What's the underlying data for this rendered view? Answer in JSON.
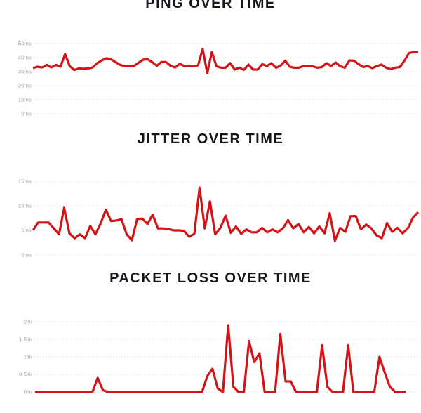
{
  "colors": {
    "line_red": "#d41317",
    "grid_dots": "#cfcfcf",
    "tick_text": "#969da5",
    "title_text": "#15171c",
    "background": "#ffffff"
  },
  "chart_data": [
    {
      "id": "ping",
      "type": "line",
      "title": "PING OVER TIME",
      "y_unit": "ms",
      "ylim": [
        0,
        50
      ],
      "yticks": [
        {
          "label": "50ms",
          "value": 50
        },
        {
          "label": "40ms",
          "value": 40
        },
        {
          "label": "30ms",
          "value": 30
        },
        {
          "label": "20ms",
          "value": 20
        },
        {
          "label": "10ms",
          "value": 10
        },
        {
          "label": "0ms",
          "value": 0
        }
      ],
      "grid": "dotted-horizontal",
      "legend": "none",
      "x_tick_labels": "none",
      "line_color": "#d41317",
      "values": [
        32.5,
        33.5,
        33,
        34.8,
        33,
        34.8,
        33.5,
        42.5,
        34,
        31.2,
        32.3,
        32,
        32.3,
        33,
        36,
        38,
        39.5,
        38.8,
        36.8,
        34.8,
        33.8,
        33.8,
        34,
        36.3,
        38.5,
        38.8,
        36.8,
        34.2,
        36.8,
        36.8,
        34.2,
        33,
        35.5,
        34,
        34.2,
        33.8,
        34.5,
        46.2,
        29,
        44,
        33.8,
        32.8,
        32.8,
        36,
        31.5,
        32.8,
        31.3,
        35,
        31.5,
        31.5,
        35.3,
        34,
        36,
        32.8,
        34.3,
        37.8,
        33.5,
        32.8,
        32.8,
        34,
        34,
        33.8,
        32.8,
        33.3,
        36,
        34,
        36.5,
        33.8,
        32.8,
        38,
        37.8,
        35.3,
        33.3,
        34,
        32.5,
        34,
        35,
        32.8,
        31.8,
        32.8,
        33.3,
        37.8,
        43.3,
        43.9,
        43.9
      ]
    },
    {
      "id": "jitter",
      "type": "line",
      "title": "JITTER OVER TIME",
      "y_unit": "ms",
      "ylim": [
        0,
        15
      ],
      "yticks": [
        {
          "label": "15ms",
          "value": 15
        },
        {
          "label": "10ms",
          "value": 10
        },
        {
          "label": "5ms",
          "value": 5
        },
        {
          "label": "0ms",
          "value": 0
        }
      ],
      "grid": "dotted-horizontal",
      "legend": "none",
      "x_tick_labels": "none",
      "line_color": "#d41317",
      "values": [
        5,
        6.6,
        6.6,
        6.6,
        5.4,
        4.2,
        9.6,
        4.4,
        3.4,
        4.2,
        3.4,
        5.9,
        4.2,
        6.4,
        9.2,
        6.9,
        7.0,
        7.3,
        4.2,
        3.0,
        7.3,
        7.4,
        6.3,
        8.2,
        5.4,
        5.4,
        5.3,
        5.0,
        5.0,
        4.9,
        3.7,
        4.3,
        13.7,
        5.4,
        10.9,
        4.2,
        5.5,
        8.0,
        4.5,
        5.8,
        4.3,
        5.2,
        4.6,
        4.6,
        5.5,
        4.6,
        5.2,
        4.6,
        5.4,
        7.1,
        5.4,
        6.3,
        4.6,
        5.7,
        4.4,
        5.8,
        4.4,
        8.5,
        2.9,
        5.5,
        4.7,
        7.9,
        7.9,
        5.2,
        6.2,
        5.4,
        4.0,
        3.4,
        6.5,
        4.7,
        5.5,
        4.4,
        5.4,
        7.6,
        8.7
      ]
    },
    {
      "id": "packetloss",
      "type": "line",
      "title": "PACKET LOSS OVER TIME",
      "y_unit": "%",
      "ylim": [
        0,
        2
      ],
      "yticks": [
        {
          "label": "2%",
          "value": 2
        },
        {
          "label": "1.5%",
          "value": 1.5
        },
        {
          "label": "1%",
          "value": 1
        },
        {
          "label": "0.5%",
          "value": 0.5
        },
        {
          "label": "0%",
          "value": 0
        }
      ],
      "grid": "dotted-horizontal",
      "legend": "none",
      "x_tick_labels": "none",
      "line_color": "#d41317",
      "values": [
        0,
        0,
        0,
        0,
        0,
        0,
        0,
        0,
        0,
        0,
        0,
        0,
        0.4,
        0.05,
        0,
        0,
        0,
        0,
        0,
        0,
        0,
        0,
        0,
        0,
        0,
        0,
        0,
        0,
        0,
        0,
        0,
        0,
        0,
        0.45,
        0.66,
        0.1,
        0,
        1.9,
        0.15,
        0,
        0,
        1.45,
        0.85,
        1.1,
        0,
        0,
        0,
        1.65,
        0.3,
        0.3,
        0,
        0,
        0,
        0,
        0,
        1.33,
        0.15,
        0,
        0,
        0,
        1.33,
        0,
        0,
        0,
        0,
        0,
        1.0,
        0.55,
        0.15,
        0,
        0,
        0
      ]
    }
  ]
}
